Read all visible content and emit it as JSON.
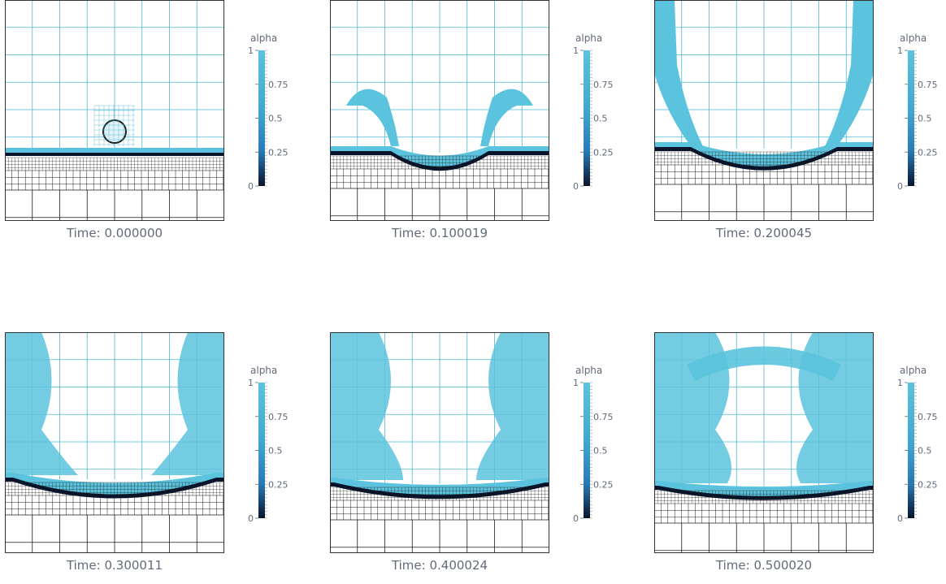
{
  "colorbar": {
    "title": "alpha",
    "ticks": [
      "1",
      "0.75",
      "0.5",
      "0.25",
      "0"
    ]
  },
  "colors": {
    "light": "#5bc3dd",
    "mid": "#2878b6",
    "dark": "#07142b",
    "grid_light": "#4cb6d3",
    "grid_dark": "#1a1a1a"
  },
  "panels": [
    {
      "time_label": "Time: 0.000000",
      "stage": 0
    },
    {
      "time_label": "Time: 0.100019",
      "stage": 1
    },
    {
      "time_label": "Time: 0.200045",
      "stage": 2
    },
    {
      "time_label": "Time: 0.300011",
      "stage": 3
    },
    {
      "time_label": "Time: 0.400024",
      "stage": 4
    },
    {
      "time_label": "Time: 0.500020",
      "stage": 5
    }
  ]
}
